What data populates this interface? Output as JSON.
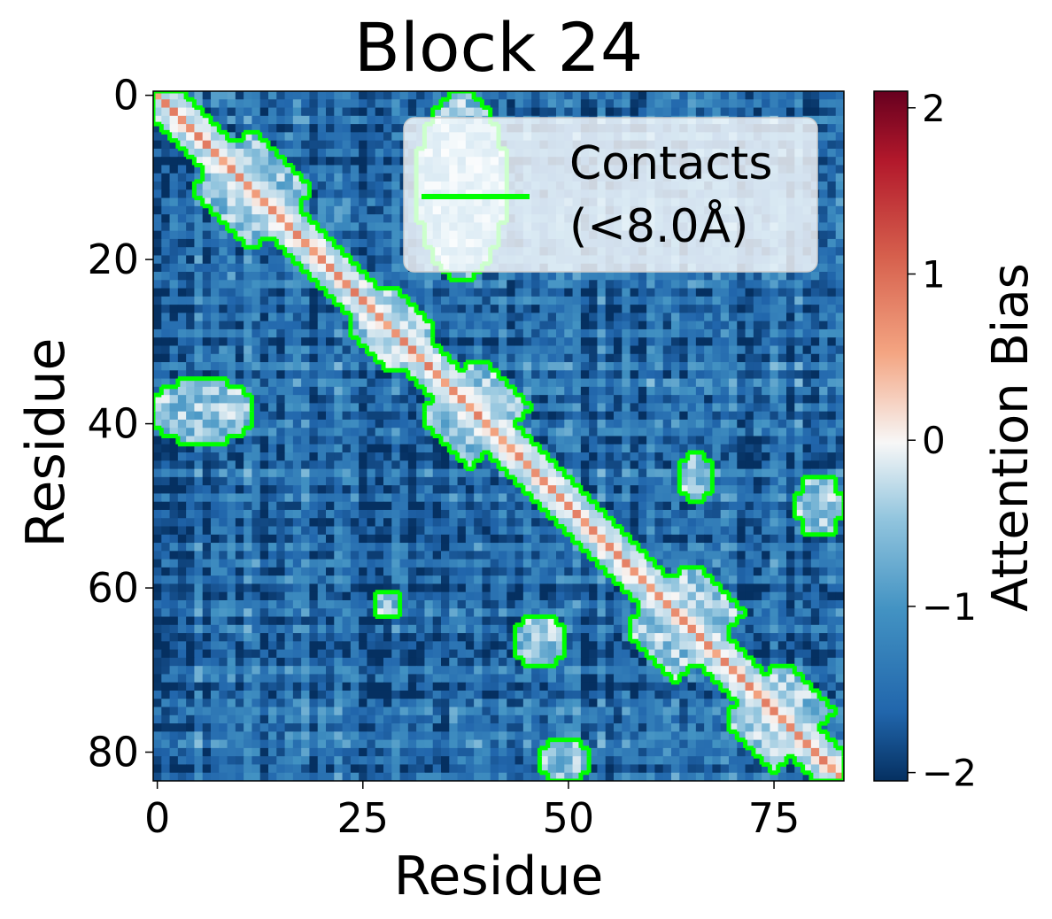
{
  "chart_data": {
    "type": "heatmap",
    "title": "Block 24",
    "xlabel": "Residue",
    "ylabel": "Residue",
    "n": 84,
    "x_ticks": [
      0,
      25,
      50,
      75
    ],
    "y_ticks": [
      0,
      20,
      40,
      60,
      80
    ],
    "colormap": "RdBu_r",
    "colorbar": {
      "label": "Attention Bias",
      "vmin": -2.05,
      "vmax": 2.1,
      "ticks": [
        2,
        1,
        0,
        -1,
        -2
      ],
      "tick_labels": [
        "2",
        "1",
        "0",
        "−1",
        "−2"
      ]
    },
    "legend": {
      "entries": [
        "Contacts",
        "(<8.0Å)"
      ],
      "position": "upper right",
      "color": "#00ff00"
    },
    "contact_threshold": "8.0Å",
    "contact_color": "#00ff00",
    "diagonal_bias_approx": 0.7,
    "near_diagonal_bias_approx": 0.0,
    "background_bias_approx": -1.5,
    "contact_regions": [
      {
        "i_range": [
          0,
          83
        ],
        "j_range": [
          0,
          83
        ],
        "kind": "diagonal band"
      },
      {
        "i_range": [
          5,
          18
        ],
        "j_range": [
          5,
          18
        ],
        "kind": "hub"
      },
      {
        "i_range": [
          24,
          33
        ],
        "j_range": [
          24,
          33
        ],
        "kind": "hub"
      },
      {
        "i_range": [
          33,
          43
        ],
        "j_range": [
          33,
          45
        ],
        "kind": "hub"
      },
      {
        "i_range": [
          58,
          68
        ],
        "j_range": [
          58,
          72
        ],
        "kind": "hub"
      },
      {
        "i_range": [
          70,
          80
        ],
        "j_range": [
          70,
          82
        ],
        "kind": "hub"
      },
      {
        "i_range": [
          35,
          42
        ],
        "j_range": [
          0,
          11
        ],
        "kind": "patch"
      },
      {
        "i_range": [
          0,
          22
        ],
        "j_range": [
          32,
          42
        ],
        "kind": "patch"
      },
      {
        "i_range": [
          47,
          53
        ],
        "j_range": [
          78,
          83
        ],
        "kind": "patch"
      },
      {
        "i_range": [
          64,
          69
        ],
        "j_range": [
          44,
          49
        ],
        "kind": "patch"
      },
      {
        "i_range": [
          79,
          83
        ],
        "j_range": [
          47,
          52
        ],
        "kind": "patch"
      },
      {
        "i_range": [
          61,
          63
        ],
        "j_range": [
          27,
          29
        ],
        "kind": "patch"
      },
      {
        "i_range": [
          44,
          49
        ],
        "j_range": [
          64,
          67
        ],
        "kind": "patch"
      }
    ]
  }
}
